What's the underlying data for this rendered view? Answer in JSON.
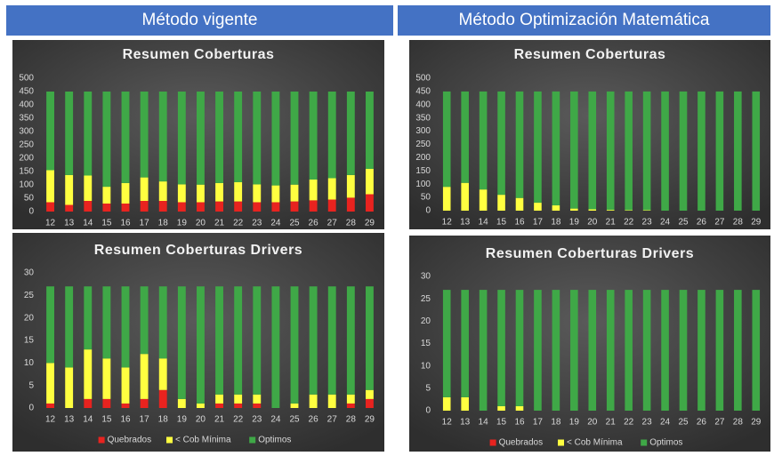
{
  "headers": [
    "Método vigente",
    "Método Optimización Matemática"
  ],
  "chart_data": [
    {
      "type": "bar",
      "stacked": true,
      "title": "Resumen Coberturas",
      "categories": [
        "12",
        "13",
        "14",
        "15",
        "16",
        "17",
        "18",
        "19",
        "20",
        "21",
        "22",
        "23",
        "24",
        "25",
        "26",
        "27",
        "28",
        "29"
      ],
      "series": [
        {
          "name": "Quebrados",
          "color": "#e8231f",
          "values": [
            35,
            25,
            40,
            30,
            30,
            40,
            40,
            35,
            35,
            38,
            38,
            35,
            35,
            38,
            42,
            45,
            52,
            65
          ]
        },
        {
          "name": "< Cob Mínima",
          "color": "#ffff40",
          "values": [
            120,
            112,
            95,
            63,
            77,
            88,
            73,
            67,
            66,
            69,
            72,
            67,
            63,
            63,
            78,
            80,
            85,
            95
          ]
        },
        {
          "name": "Optimos",
          "color": "#3fa847",
          "values": [
            295,
            313,
            315,
            357,
            343,
            322,
            337,
            348,
            349,
            343,
            340,
            348,
            352,
            349,
            330,
            325,
            313,
            290
          ]
        }
      ],
      "ylim": [
        0,
        500
      ],
      "yticks": [
        0,
        50,
        100,
        150,
        200,
        250,
        300,
        350,
        400,
        450,
        500
      ]
    },
    {
      "type": "bar",
      "stacked": true,
      "title": "Resumen Coberturas Drivers",
      "categories": [
        "12",
        "13",
        "14",
        "15",
        "16",
        "17",
        "18",
        "19",
        "20",
        "21",
        "22",
        "23",
        "24",
        "25",
        "26",
        "27",
        "28",
        "29"
      ],
      "series": [
        {
          "name": "Quebrados",
          "color": "#e8231f",
          "values": [
            1,
            0,
            2,
            2,
            1,
            2,
            4,
            0,
            0,
            1,
            1,
            1,
            0,
            0,
            0,
            0,
            1,
            2
          ]
        },
        {
          "name": "< Cob Mínima",
          "color": "#ffff40",
          "values": [
            9,
            9,
            11,
            9,
            8,
            10,
            7,
            2,
            1,
            2,
            2,
            2,
            0,
            1,
            3,
            3,
            2,
            2
          ]
        },
        {
          "name": "Optimos",
          "color": "#3fa847",
          "values": [
            17,
            18,
            14,
            16,
            18,
            15,
            16,
            25,
            26,
            24,
            24,
            24,
            27,
            26,
            24,
            24,
            24,
            23
          ]
        }
      ],
      "ylim": [
        0,
        30
      ],
      "yticks": [
        0,
        5,
        10,
        15,
        20,
        25,
        30
      ],
      "legend": "bottom"
    },
    {
      "type": "bar",
      "stacked": true,
      "title": "Resumen Coberturas",
      "categories": [
        "12",
        "13",
        "14",
        "15",
        "16",
        "17",
        "18",
        "19",
        "20",
        "21",
        "22",
        "23",
        "24",
        "25",
        "26",
        "27",
        "28",
        "29"
      ],
      "series": [
        {
          "name": "Quebrados",
          "color": "#e8231f",
          "values": [
            0,
            0,
            0,
            0,
            0,
            0,
            0,
            0,
            0,
            0,
            0,
            0,
            0,
            0,
            0,
            0,
            0,
            0
          ]
        },
        {
          "name": "< Cob Mínima",
          "color": "#ffff40",
          "values": [
            90,
            105,
            80,
            60,
            48,
            30,
            20,
            8,
            5,
            3,
            2,
            2,
            0,
            0,
            0,
            0,
            0,
            0
          ]
        },
        {
          "name": "Optimos",
          "color": "#3fa847",
          "values": [
            360,
            345,
            370,
            390,
            402,
            420,
            430,
            442,
            445,
            447,
            448,
            448,
            450,
            450,
            450,
            450,
            450,
            450
          ]
        }
      ],
      "ylim": [
        0,
        500
      ],
      "yticks": [
        0,
        50,
        100,
        150,
        200,
        250,
        300,
        350,
        400,
        450,
        500
      ]
    },
    {
      "type": "bar",
      "stacked": true,
      "title": "Resumen Coberturas Drivers",
      "categories": [
        "12",
        "13",
        "14",
        "15",
        "16",
        "17",
        "18",
        "19",
        "20",
        "21",
        "22",
        "23",
        "24",
        "25",
        "26",
        "27",
        "28",
        "29"
      ],
      "series": [
        {
          "name": "Quebrados",
          "color": "#e8231f",
          "values": [
            0,
            0,
            0,
            0,
            0,
            0,
            0,
            0,
            0,
            0,
            0,
            0,
            0,
            0,
            0,
            0,
            0,
            0
          ]
        },
        {
          "name": "< Cob Mínima",
          "color": "#ffff40",
          "values": [
            3,
            3,
            0,
            1,
            1,
            0,
            0,
            0,
            0,
            0,
            0,
            0,
            0,
            0,
            0,
            0,
            0,
            0
          ]
        },
        {
          "name": "Optimos",
          "color": "#3fa847",
          "values": [
            24,
            24,
            27,
            26,
            26,
            27,
            27,
            27,
            27,
            27,
            27,
            27,
            27,
            27,
            27,
            27,
            27,
            27
          ]
        }
      ],
      "ylim": [
        0,
        30
      ],
      "yticks": [
        0,
        5,
        10,
        15,
        20,
        25,
        30
      ],
      "legend": "bottom"
    }
  ]
}
